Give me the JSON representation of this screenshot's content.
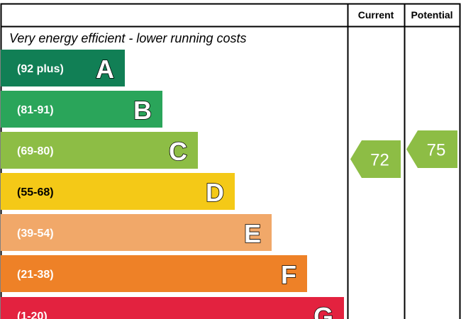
{
  "chart_data": {
    "type": "bar",
    "title": "",
    "columns": [
      "Current",
      "Potential"
    ],
    "top_caption": "Very energy efficient - lower running costs",
    "bands": [
      {
        "letter": "A",
        "range": "(92 plus)",
        "color": "#117f55"
      },
      {
        "letter": "B",
        "range": "(81-91)",
        "color": "#2aa55a"
      },
      {
        "letter": "C",
        "range": "(69-80)",
        "color": "#8dbd45"
      },
      {
        "letter": "D",
        "range": "(55-68)",
        "color": "#f4c917"
      },
      {
        "letter": "E",
        "range": "(39-54)",
        "color": "#f1a869"
      },
      {
        "letter": "F",
        "range": "(21-38)",
        "color": "#ee8127"
      },
      {
        "letter": "G",
        "range": "(1-20)",
        "color": "#e3223f"
      }
    ],
    "current": {
      "value": "72",
      "band": "C",
      "color": "#8dbd45"
    },
    "potential": {
      "value": "75",
      "band": "C",
      "color": "#8dbd45"
    }
  }
}
